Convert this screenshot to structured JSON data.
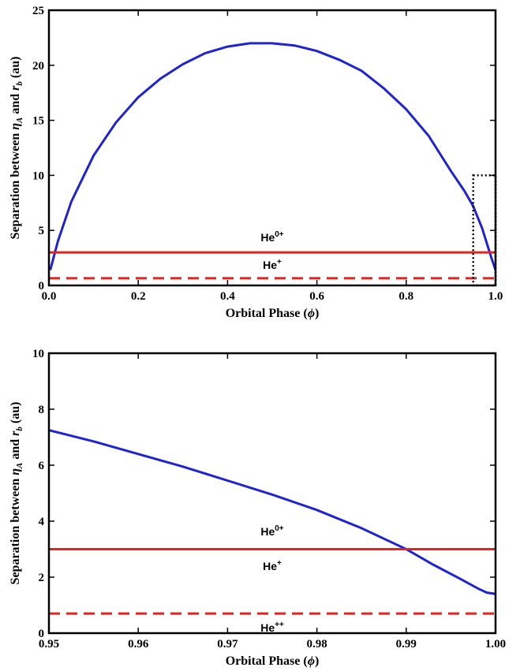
{
  "chart_data": [
    {
      "type": "line",
      "xlabel": "Orbital Phase (ϕ)",
      "ylabel": "Separation between ηA and rb (au)",
      "ylabel_parts": {
        "prefix": "Separation between ",
        "eta": "η",
        "eta_sub": "A",
        "and": " and ",
        "r": "r",
        "r_sub": "b",
        "suffix": " (au)"
      },
      "xlabel_parts": {
        "text": "Orbital Phase (",
        "phi": "ϕ",
        "close": ")"
      },
      "xlim": [
        0,
        1
      ],
      "ylim": [
        0,
        25
      ],
      "x_ticks": [
        "0.0",
        "0.2",
        "0.4",
        "0.6",
        "0.8",
        "1.0"
      ],
      "y_ticks": [
        "0",
        "5",
        "10",
        "15",
        "20",
        "25"
      ],
      "x_tick_values": [
        0,
        0.2,
        0.4,
        0.6,
        0.8,
        1.0
      ],
      "y_tick_values": [
        0,
        5,
        10,
        15,
        20,
        25
      ],
      "series": [
        {
          "color": "#1f23d6",
          "style": "solid",
          "x": [
            0.003,
            0.02,
            0.05,
            0.1,
            0.15,
            0.2,
            0.25,
            0.3,
            0.35,
            0.4,
            0.45,
            0.5,
            0.55,
            0.6,
            0.65,
            0.7,
            0.75,
            0.8,
            0.85,
            0.9,
            0.93,
            0.95,
            0.97,
            0.99,
            1.0
          ],
          "y": [
            1.4,
            4.0,
            7.6,
            11.8,
            14.8,
            17.1,
            18.8,
            20.1,
            21.1,
            21.7,
            22.0,
            22.0,
            21.8,
            21.3,
            20.5,
            19.5,
            17.9,
            16.0,
            13.6,
            10.4,
            8.6,
            7.2,
            5.2,
            2.6,
            1.4
          ]
        },
        {
          "color": "#e8211a",
          "style": "solid",
          "x": [
            0,
            1
          ],
          "y": [
            3,
            3
          ]
        },
        {
          "color": "#e8211a",
          "style": "dashed",
          "x": [
            0,
            1
          ],
          "y": [
            0.65,
            0.65
          ]
        }
      ],
      "inset_box": {
        "x0": 0.95,
        "x1": 1.0,
        "y0": 0,
        "y1": 10
      },
      "annotations": [
        {
          "base": "He",
          "sup": "0+",
          "x": 0.5,
          "y": 4.0
        },
        {
          "base": "He",
          "sup": "+",
          "x": 0.5,
          "y": 1.5
        }
      ]
    },
    {
      "type": "line",
      "xlabel": "Orbital Phase (ϕ)",
      "ylabel": "Separation between ηA and rb (au)",
      "ylabel_parts": {
        "prefix": "Separation between ",
        "eta": "η",
        "eta_sub": "A",
        "and": " and ",
        "r": "r",
        "r_sub": "b",
        "suffix": " (au)"
      },
      "xlabel_parts": {
        "text": "Orbital Phase (",
        "phi": "ϕ",
        "close": ")"
      },
      "xlim": [
        0.95,
        1.0
      ],
      "ylim": [
        0,
        10
      ],
      "x_ticks": [
        "0.95",
        "0.96",
        "0.97",
        "0.98",
        "0.99",
        "1.00"
      ],
      "y_ticks": [
        "0",
        "2",
        "4",
        "6",
        "8",
        "10"
      ],
      "x_tick_values": [
        0.95,
        0.96,
        0.97,
        0.98,
        0.99,
        1.0
      ],
      "y_tick_values": [
        0,
        2,
        4,
        6,
        8,
        10
      ],
      "series": [
        {
          "color": "#1f23d6",
          "style": "solid",
          "x": [
            0.95,
            0.955,
            0.96,
            0.965,
            0.97,
            0.975,
            0.98,
            0.985,
            0.99,
            0.993,
            0.996,
            0.998,
            0.999,
            1.0
          ],
          "y": [
            7.25,
            6.85,
            6.4,
            5.95,
            5.45,
            4.95,
            4.4,
            3.75,
            3.0,
            2.45,
            1.95,
            1.6,
            1.45,
            1.4
          ]
        },
        {
          "color": "#e8211a",
          "style": "solid",
          "x": [
            0.95,
            1.0
          ],
          "y": [
            3,
            3
          ]
        },
        {
          "color": "#e8211a",
          "style": "dashed",
          "x": [
            0.95,
            1.0
          ],
          "y": [
            0.7,
            0.7
          ]
        }
      ],
      "annotations": [
        {
          "base": "He",
          "sup": "0+",
          "x": 0.975,
          "y": 3.5
        },
        {
          "base": "He",
          "sup": "+",
          "x": 0.975,
          "y": 2.25
        },
        {
          "base": "He",
          "sup": "++",
          "x": 0.975,
          "y": 0.05
        }
      ]
    }
  ]
}
